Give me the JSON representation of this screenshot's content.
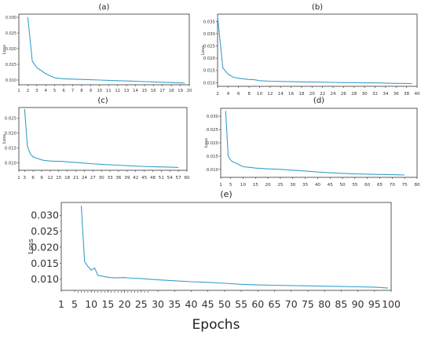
{
  "xlabel": "Epochs",
  "series_color": "#3a9fc9",
  "chart_data": [
    {
      "type": "line",
      "title": "(a)",
      "ylabel": "Loss",
      "x_ticks": [
        1,
        2,
        3,
        4,
        5,
        6,
        7,
        8,
        9,
        10,
        11,
        12,
        13,
        14,
        15,
        16,
        17,
        18,
        19,
        20
      ],
      "y_ticks": [
        "0.010",
        "0.015",
        "0.020",
        "0.025",
        "0.030"
      ],
      "ylim": [
        0.0085,
        0.031
      ],
      "x": [
        2,
        2.5,
        3,
        4,
        5,
        6,
        7,
        8,
        9,
        10,
        11,
        12,
        13,
        14,
        15,
        16,
        17,
        18,
        19,
        19.5
      ],
      "y": [
        0.03,
        0.016,
        0.014,
        0.012,
        0.0107,
        0.0104,
        0.0103,
        0.0102,
        0.0101,
        0.01,
        0.0099,
        0.0098,
        0.0097,
        0.0096,
        0.0095,
        0.0094,
        0.0093,
        0.0092,
        0.0091,
        0.009
      ]
    },
    {
      "type": "line",
      "title": "(b)",
      "ylabel": "Loss",
      "x_ticks": [
        2,
        4,
        6,
        8,
        10,
        12,
        14,
        16,
        18,
        20,
        22,
        24,
        26,
        28,
        30,
        32,
        34,
        36,
        38,
        40
      ],
      "y_ticks": [
        "0.010",
        "0.015",
        "0.020",
        "0.025",
        "0.030",
        "0.035"
      ],
      "ylim": [
        0.0085,
        0.038
      ],
      "x": [
        2,
        3,
        4,
        5,
        6,
        7,
        8,
        9,
        10,
        12,
        14,
        16,
        18,
        20,
        22,
        24,
        26,
        28,
        30,
        32,
        34,
        36,
        38,
        39
      ],
      "y": [
        0.037,
        0.016,
        0.0135,
        0.0122,
        0.0118,
        0.0115,
        0.0113,
        0.0112,
        0.0108,
        0.0106,
        0.0105,
        0.0104,
        0.0103,
        0.0103,
        0.0102,
        0.0101,
        0.01,
        0.01,
        0.0099,
        0.0099,
        0.0098,
        0.0097,
        0.0097,
        0.0096
      ]
    },
    {
      "type": "line",
      "title": "(c)",
      "ylabel": "Loss",
      "x_ticks": [
        1,
        3,
        6,
        9,
        12,
        15,
        18,
        21,
        24,
        27,
        30,
        33,
        36,
        39,
        42,
        45,
        48,
        51,
        54,
        57,
        60
      ],
      "y_ticks": [
        "0.010",
        "0.015",
        "0.020",
        "0.025"
      ],
      "ylim": [
        0.0075,
        0.0285
      ],
      "x": [
        3,
        4,
        5,
        6,
        7,
        8,
        9,
        10,
        12,
        14,
        16,
        18,
        20,
        24,
        28,
        32,
        36,
        40,
        44,
        48,
        52,
        56,
        57
      ],
      "y": [
        0.028,
        0.0155,
        0.013,
        0.012,
        0.0116,
        0.0113,
        0.011,
        0.0108,
        0.0106,
        0.0105,
        0.0105,
        0.0103,
        0.0102,
        0.0099,
        0.0096,
        0.0094,
        0.0092,
        0.009,
        0.0088,
        0.0087,
        0.0086,
        0.0085,
        0.0084
      ]
    },
    {
      "type": "line",
      "title": "(d)",
      "ylabel": "Loss",
      "x_ticks": [
        1,
        5,
        10,
        15,
        20,
        25,
        30,
        35,
        40,
        45,
        50,
        55,
        60,
        65,
        70,
        75,
        80
      ],
      "y_ticks": [
        "0.010",
        "0.015",
        "0.020",
        "0.025",
        "0.030"
      ],
      "ylim": [
        0.007,
        0.033
      ],
      "x": [
        3,
        4,
        5,
        6,
        8,
        10,
        12,
        15,
        20,
        25,
        30,
        35,
        40,
        45,
        50,
        55,
        60,
        65,
        70,
        75
      ],
      "y": [
        0.032,
        0.015,
        0.0135,
        0.0128,
        0.012,
        0.011,
        0.0108,
        0.0105,
        0.0102,
        0.01,
        0.0097,
        0.0094,
        0.009,
        0.0087,
        0.0085,
        0.0083,
        0.0082,
        0.0081,
        0.008,
        0.0079
      ]
    },
    {
      "type": "line",
      "title": "(e)",
      "ylabel": "Loss",
      "x_ticks": [
        1,
        5,
        10,
        15,
        20,
        25,
        30,
        35,
        40,
        45,
        50,
        55,
        60,
        65,
        70,
        75,
        80,
        85,
        90,
        95,
        100
      ],
      "y_ticks": [
        "0.010",
        "0.015",
        "0.020",
        "0.025",
        "0.030"
      ],
      "ylim": [
        0.0065,
        0.034
      ],
      "x": [
        7,
        8,
        9,
        10,
        11,
        12,
        13,
        15,
        17,
        20,
        22,
        25,
        27,
        30,
        35,
        40,
        45,
        50,
        55,
        60,
        65,
        70,
        75,
        80,
        85,
        90,
        95,
        99
      ],
      "y": [
        0.033,
        0.0155,
        0.014,
        0.0128,
        0.0135,
        0.0112,
        0.011,
        0.0106,
        0.0104,
        0.0105,
        0.0103,
        0.0102,
        0.01,
        0.0098,
        0.0095,
        0.0092,
        0.009,
        0.0087,
        0.0084,
        0.0082,
        0.0081,
        0.008,
        0.0079,
        0.0078,
        0.0077,
        0.0076,
        0.0075,
        0.0072
      ]
    }
  ]
}
